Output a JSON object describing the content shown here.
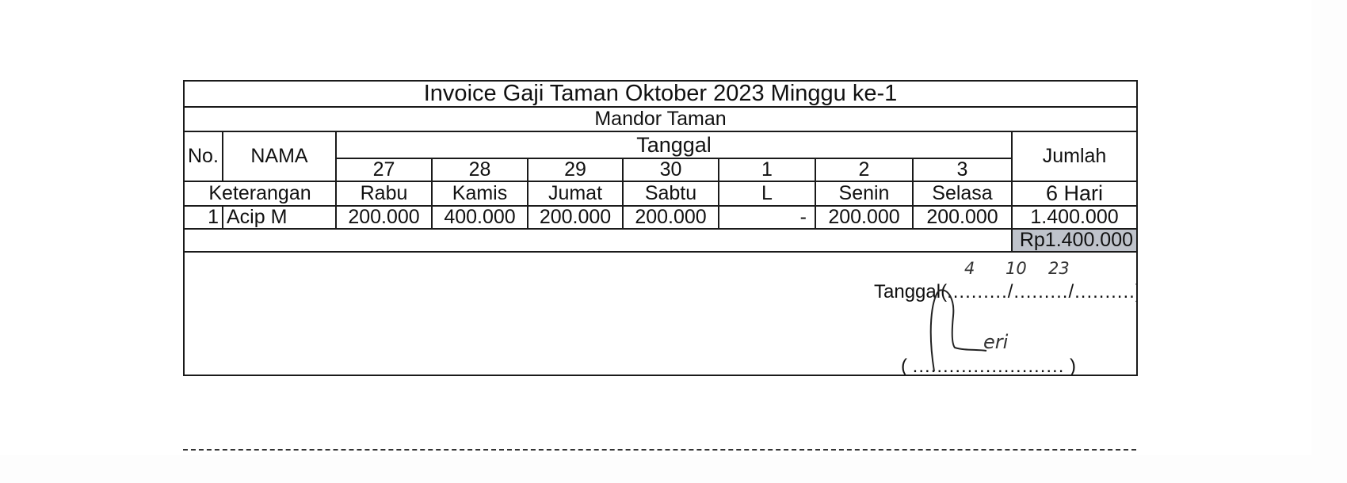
{
  "title": "Invoice Gaji Taman Oktober 2023 Minggu ke-1",
  "subtitle": "Mandor Taman",
  "headers": {
    "no": "No.",
    "nama": "NAMA",
    "tanggal": "Tanggal",
    "jumlah": "Jumlah",
    "keterangan": "Keterangan"
  },
  "dates": [
    "27",
    "28",
    "29",
    "30",
    "1",
    "2",
    "3"
  ],
  "days": [
    "Rabu",
    "Kamis",
    "Jumat",
    "Sabtu",
    "L",
    "Senin",
    "Selasa"
  ],
  "days_total": "6 Hari",
  "rows": [
    {
      "no": "1",
      "nama": "Acip M",
      "values": [
        "200.000",
        "400.000",
        "200.000",
        "200.000",
        "-",
        "200.000",
        "200.000"
      ],
      "jumlah": "1.400.000"
    }
  ],
  "grand_total": "Rp1.400.000",
  "signature": {
    "date_label": "Tanggal",
    "date_day": "4",
    "date_month": "10",
    "date_year": "23",
    "name_handwritten": "eri"
  }
}
